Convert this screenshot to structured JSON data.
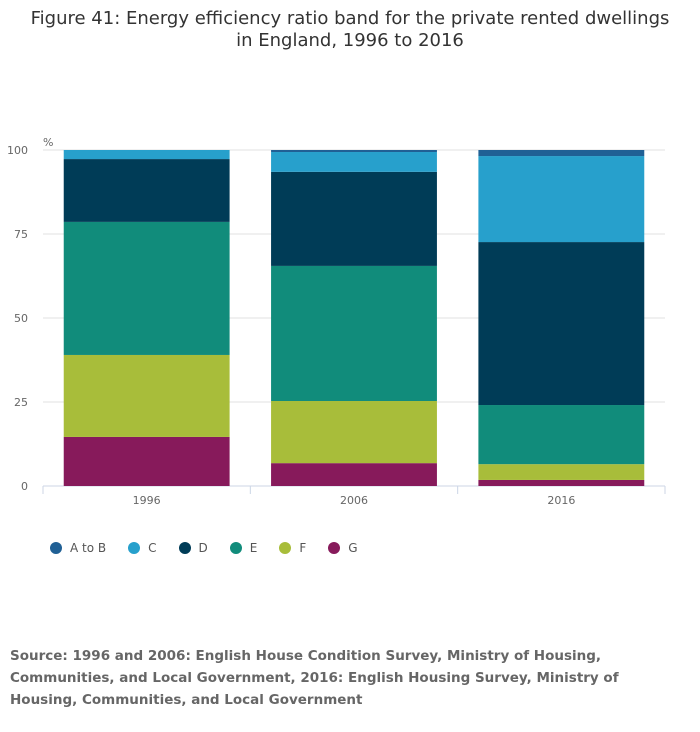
{
  "title": "Figure 41: Energy efficiency ratio band for the private rented dwellings in England, 1996 to 2016",
  "source": "Source: 1996 and 2006:  English House Condition Survey, Ministry of Housing, Communities, and Local Government, 2016: English Housing Survey, Ministry of Housing, Communities, and Local Government",
  "chart_data": {
    "type": "bar",
    "stacked": true,
    "title": "Figure 41: Energy efficiency ratio band for the private rented dwellings in England, 1996 to 2016",
    "ylabel": "%",
    "ylim": [
      0,
      100
    ],
    "yticks": [
      "0",
      "25",
      "50",
      "75",
      "100"
    ],
    "categories": [
      "1996",
      "2006",
      "2016"
    ],
    "grid": true,
    "legend_position": "bottom-left",
    "series": [
      {
        "name": "G",
        "color": "#871a5b",
        "values": [
          14.6,
          6.8,
          1.8
        ]
      },
      {
        "name": "F",
        "color": "#a8bd3a",
        "values": [
          24.4,
          18.5,
          4.7
        ]
      },
      {
        "name": "E",
        "color": "#118c7b",
        "values": [
          39.6,
          40.2,
          17.6
        ]
      },
      {
        "name": "D",
        "color": "#003c57",
        "values": [
          18.7,
          28.0,
          48.5
        ]
      },
      {
        "name": "C",
        "color": "#27a0cc",
        "values": [
          2.7,
          5.9,
          25.6
        ]
      },
      {
        "name": "A to B",
        "color": "#206095",
        "values": [
          0.0,
          0.6,
          1.8
        ]
      }
    ],
    "legend_order": [
      "A to B",
      "C",
      "D",
      "E",
      "F",
      "G"
    ]
  }
}
